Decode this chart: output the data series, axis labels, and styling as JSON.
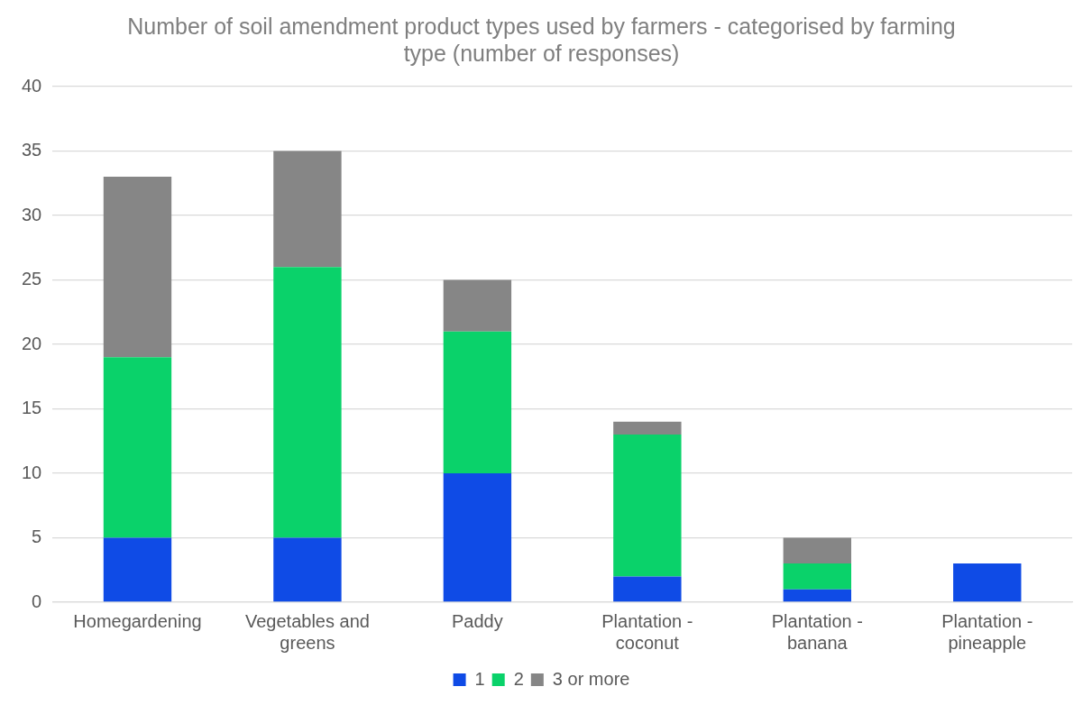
{
  "chart_data": {
    "type": "bar",
    "title": "Number of soil amendment product types used by farmers - categorised by farming type (number of responses)",
    "categories": [
      "Homegardening",
      "Vegetables and greens",
      "Paddy",
      "Plantation - coconut",
      "Plantation - banana",
      "Plantation - pineapple"
    ],
    "series": [
      {
        "name": "1",
        "color": "#0f4be6",
        "values": [
          5,
          5,
          10,
          2,
          1,
          3
        ]
      },
      {
        "name": "2",
        "color": "#0ad26a",
        "values": [
          14,
          21,
          11,
          11,
          2,
          0
        ]
      },
      {
        "name": "3 or more",
        "color": "#868686",
        "values": [
          14,
          9,
          4,
          1,
          2,
          0
        ]
      }
    ],
    "stacked": true,
    "ylim": [
      0,
      40
    ],
    "yticks": [
      0,
      5,
      10,
      15,
      20,
      25,
      30,
      35,
      40
    ],
    "grid": "y",
    "legend": "bottom"
  }
}
